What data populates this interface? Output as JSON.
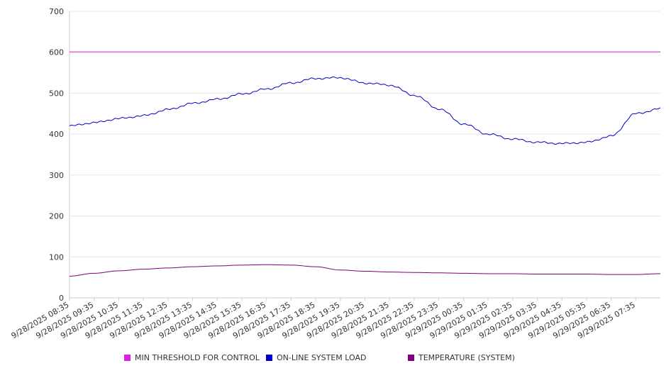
{
  "chart_data": {
    "type": "line",
    "title": "",
    "xlabel": "",
    "ylabel": "",
    "ylim": [
      0,
      700
    ],
    "y_ticks": [
      "0",
      "100",
      "200",
      "300",
      "400",
      "500",
      "600",
      "700"
    ],
    "x_tick_labels": [
      "9/28/2025 08:35",
      "9/28/2025 09:35",
      "9/28/2025 10:35",
      "9/28/2025 11:35",
      "9/28/2025 12:35",
      "9/28/2025 13:35",
      "9/28/2025 14:35",
      "9/28/2025 15:35",
      "9/28/2025 16:35",
      "9/28/2025 17:35",
      "9/28/2025 18:35",
      "9/28/2025 19:35",
      "9/28/2025 20:35",
      "9/28/2025 21:35",
      "9/28/2025 22:35",
      "9/28/2025 23:35",
      "9/29/2025 00:35",
      "9/29/2025 01:35",
      "9/29/2025 02:35",
      "9/29/2025 03:35",
      "9/29/2025 04:35",
      "9/29/2025 05:35",
      "9/29/2025 06:35",
      "9/29/2025 07:35"
    ],
    "grid": true,
    "legend_position": "bottom",
    "series": [
      {
        "name": "MIN THRESHOLD FOR CONTROL",
        "color": "#e020e0",
        "values": [
          601,
          601,
          601,
          601,
          601,
          601,
          601,
          601,
          601,
          601,
          601,
          601,
          601,
          601,
          601,
          601,
          601,
          601,
          601,
          601,
          601,
          601,
          601,
          601,
          601
        ]
      },
      {
        "name": "ON-LINE SYSTEM LOAD",
        "color": "#0000cc",
        "values": [
          420,
          428,
          438,
          445,
          460,
          475,
          485,
          498,
          510,
          525,
          536,
          538,
          525,
          520,
          495,
          462,
          425,
          400,
          388,
          380,
          377,
          380,
          395,
          450,
          462
        ]
      },
      {
        "name": "TEMPERATURE (SYSTEM)",
        "color": "#800080",
        "values": [
          53,
          60,
          66,
          70,
          73,
          76,
          78,
          80,
          81,
          80,
          76,
          68,
          65,
          63,
          62,
          61,
          60,
          59,
          59,
          58,
          58,
          58,
          57,
          57,
          59
        ]
      }
    ]
  }
}
